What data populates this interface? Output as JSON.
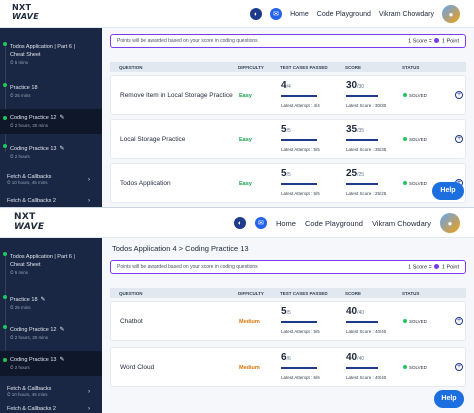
{
  "logo": {
    "line1": "NXT",
    "line2": "WAVE"
  },
  "nav": {
    "home": "Home",
    "playground": "Code Playground",
    "user": "Vikram Chowdary"
  },
  "help_label": "Help",
  "notice": {
    "text": "Points will be awarded based on your score in coding questions",
    "rule_left": "1 Score =",
    "rule_right": "1 Point"
  },
  "columns": {
    "question": "QUESTION",
    "difficulty": "DIFFICULTY",
    "tests": "TEST CASES PASSED",
    "score": "SCORE",
    "status": "STATUS"
  },
  "shot1": {
    "sidebar": [
      {
        "title": "Todos Application | Part 6 |",
        "title2": "Cheat Sheet",
        "sub": "5 mins"
      },
      {
        "title": "Practice 18",
        "sub": "25 mins"
      },
      {
        "title": "Coding Practice 12",
        "sub": "2 hours, 30 mins",
        "active": true
      },
      {
        "title": "Coding Practice 13",
        "sub": "2 hours"
      }
    ],
    "sections": [
      {
        "title": "Fetch & Callbacks",
        "sub": "10 hours, 45 mins"
      },
      {
        "title": "Fetch & Callbacks 2",
        "sub": ""
      }
    ],
    "rows": [
      {
        "name": "Remove Item in Local Storage Practice",
        "difficulty": "Easy",
        "passed": "4",
        "total": "/4",
        "passed_ratio": 1.0,
        "attempt": "Latest Attempt : 4/4",
        "score": "30",
        "score_total": "/30",
        "score_ratio": 1.0,
        "latest_score": "Latest Score : 30/30",
        "status": "SOLVED"
      },
      {
        "name": "Local Storage Practice",
        "difficulty": "Easy",
        "passed": "5",
        "total": "/5",
        "passed_ratio": 1.0,
        "attempt": "Latest Attempt : 5/5",
        "score": "35",
        "score_total": "/35",
        "score_ratio": 1.0,
        "latest_score": "Latest Score : 35/35",
        "status": "SOLVED"
      },
      {
        "name": "Todos Application",
        "difficulty": "Easy",
        "passed": "5",
        "total": "/5",
        "passed_ratio": 1.0,
        "attempt": "Latest Attempt : 5/5",
        "score": "25",
        "score_total": "/25",
        "score_ratio": 1.0,
        "latest_score": "Latest Score : 25/25",
        "status": "SOLVED"
      }
    ]
  },
  "shot2": {
    "breadcrumb": "Todos Application 4 > Coding Practice 13",
    "sidebar": [
      {
        "title": "Todos Application | Part 6 |",
        "title2": "Cheat Sheet",
        "sub": "5 mins"
      },
      {
        "title": "Practice 18",
        "sub": "25 mins"
      },
      {
        "title": "Coding Practice 12",
        "sub": "2 hours, 30 mins"
      },
      {
        "title": "Coding Practice 13",
        "sub": "2 hours",
        "active": true
      }
    ],
    "sections": [
      {
        "title": "Fetch & Callbacks",
        "sub": "10 hours, 45 mins"
      },
      {
        "title": "Fetch & Callbacks 2",
        "sub": ""
      }
    ],
    "rows": [
      {
        "name": "Chatbot",
        "difficulty": "Medium",
        "passed": "5",
        "total": "/5",
        "passed_ratio": 1.0,
        "attempt": "Latest Attempt : 5/5",
        "score": "40",
        "score_total": "/40",
        "score_ratio": 1.0,
        "latest_score": "Latest Score : 40/40",
        "status": "SOLVED"
      },
      {
        "name": "Word Cloud",
        "difficulty": "Medium",
        "passed": "6",
        "total": "/6",
        "passed_ratio": 1.0,
        "attempt": "Latest Attempt : 6/6",
        "score": "40",
        "score_total": "/40",
        "score_ratio": 1.0,
        "latest_score": "Latest Score : 40/40",
        "status": "SOLVED"
      }
    ]
  }
}
